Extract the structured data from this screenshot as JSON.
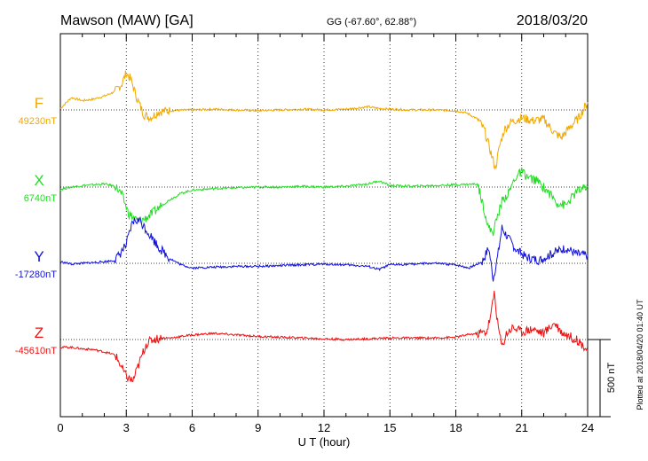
{
  "header": {
    "station": "Mawson (MAW)  [GA]",
    "coords": "GG (-67.60°,  62.88°)",
    "date": "2018/03/20"
  },
  "side_note": "Plotted at 2018/04/20 01:40 UT",
  "scale_bar_label": "500 nT",
  "chart_data": {
    "type": "line",
    "xlabel": "U T (hour)",
    "xlim": [
      0,
      24
    ],
    "x_ticks": [
      "0",
      "3",
      "6",
      "9",
      "12",
      "15",
      "18",
      "21",
      "24"
    ],
    "grid": "dotted vertical at 3 h intervals; dotted baseline per trace",
    "scale_bar_nT": 500,
    "series": [
      {
        "name": "F",
        "baseline_label": "49230nT",
        "color": "#f2a900",
        "baseline_nT": 49230,
        "x": [
          0,
          0.5,
          1,
          1.5,
          2,
          2.5,
          2.8,
          3.0,
          3.2,
          3.5,
          3.8,
          4.1,
          4.5,
          5,
          6,
          7,
          8,
          9,
          10,
          11,
          12,
          13,
          14,
          14.5,
          15,
          16,
          17,
          18,
          18.5,
          19,
          19.3,
          19.6,
          19.8,
          20.0,
          20.2,
          20.5,
          21,
          21.5,
          22,
          22.5,
          22.8,
          23.2,
          23.6,
          24
        ],
        "y": [
          49240,
          49310,
          49290,
          49300,
          49320,
          49350,
          49400,
          49470,
          49430,
          49300,
          49200,
          49180,
          49220,
          49225,
          49230,
          49235,
          49230,
          49225,
          49230,
          49235,
          49230,
          49235,
          49250,
          49240,
          49235,
          49230,
          49230,
          49225,
          49210,
          49170,
          49100,
          48950,
          48850,
          49000,
          49100,
          49150,
          49180,
          49160,
          49170,
          49080,
          49050,
          49120,
          49180,
          49280
        ]
      },
      {
        "name": "X",
        "baseline_label": "6740nT",
        "color": "#22dd22",
        "baseline_nT": 6740,
        "x": [
          0,
          0.5,
          1,
          1.5,
          2,
          2.5,
          2.8,
          3.1,
          3.5,
          3.8,
          4.2,
          4.6,
          5,
          5.5,
          6,
          7,
          8,
          9,
          10,
          11,
          12,
          13,
          14,
          14.5,
          15,
          16,
          17,
          18,
          19,
          19.3,
          19.5,
          19.7,
          19.9,
          20.1,
          20.4,
          20.7,
          21.0,
          21.3,
          21.7,
          22.2,
          22.6,
          23,
          23.5,
          24
        ],
        "y": [
          6725,
          6740,
          6750,
          6755,
          6760,
          6745,
          6690,
          6570,
          6520,
          6530,
          6570,
          6620,
          6660,
          6700,
          6720,
          6730,
          6735,
          6740,
          6740,
          6745,
          6740,
          6745,
          6760,
          6780,
          6750,
          6745,
          6750,
          6755,
          6760,
          6590,
          6470,
          6450,
          6550,
          6650,
          6700,
          6800,
          6840,
          6800,
          6780,
          6710,
          6640,
          6620,
          6710,
          6740
        ]
      },
      {
        "name": "Y",
        "baseline_label": "-17280nT",
        "color": "#1010dd",
        "baseline_nT": -17280,
        "x": [
          0,
          0.5,
          1,
          1.5,
          2,
          2.5,
          3.0,
          3.3,
          3.6,
          4.0,
          4.5,
          5,
          5.5,
          6,
          7,
          8,
          9,
          10,
          11,
          12,
          13,
          14,
          14.5,
          15,
          16,
          17,
          18,
          18.6,
          19.2,
          19.5,
          19.7,
          19.9,
          20.1,
          20.4,
          20.8,
          21.2,
          21.8,
          22.5,
          23,
          23.5,
          24
        ],
        "y": [
          -17270,
          -17285,
          -17280,
          -17275,
          -17270,
          -17260,
          -17160,
          -17010,
          -17000,
          -17080,
          -17180,
          -17250,
          -17290,
          -17310,
          -17305,
          -17300,
          -17300,
          -17295,
          -17290,
          -17285,
          -17290,
          -17300,
          -17320,
          -17290,
          -17285,
          -17280,
          -17290,
          -17310,
          -17270,
          -17180,
          -17380,
          -17240,
          -17050,
          -17120,
          -17200,
          -17240,
          -17260,
          -17210,
          -17180,
          -17220,
          -17230
        ]
      },
      {
        "name": "Z",
        "baseline_label": "-45610nT",
        "color": "#ee1111",
        "baseline_nT": -45610,
        "x": [
          0,
          0.5,
          1,
          1.5,
          2,
          2.5,
          3.0,
          3.3,
          3.6,
          3.9,
          4.2,
          4.6,
          5,
          5.5,
          6,
          7,
          8,
          9,
          10,
          11,
          12,
          13,
          14,
          15,
          16,
          17,
          18,
          18.5,
          19,
          19.4,
          19.6,
          19.75,
          19.9,
          20.1,
          20.3,
          20.6,
          21,
          21.5,
          22,
          22.5,
          22.8,
          23.2,
          23.6,
          24
        ],
        "y": [
          -45660,
          -45660,
          -45670,
          -45675,
          -45690,
          -45710,
          -45850,
          -45880,
          -45760,
          -45640,
          -45610,
          -45600,
          -45600,
          -45590,
          -45580,
          -45570,
          -45580,
          -45590,
          -45595,
          -45600,
          -45605,
          -45610,
          -45605,
          -45600,
          -45600,
          -45600,
          -45595,
          -45580,
          -45570,
          -45560,
          -45450,
          -45300,
          -45500,
          -45660,
          -45570,
          -45530,
          -45560,
          -45540,
          -45570,
          -45500,
          -45560,
          -45590,
          -45620,
          -45680
        ]
      }
    ]
  }
}
